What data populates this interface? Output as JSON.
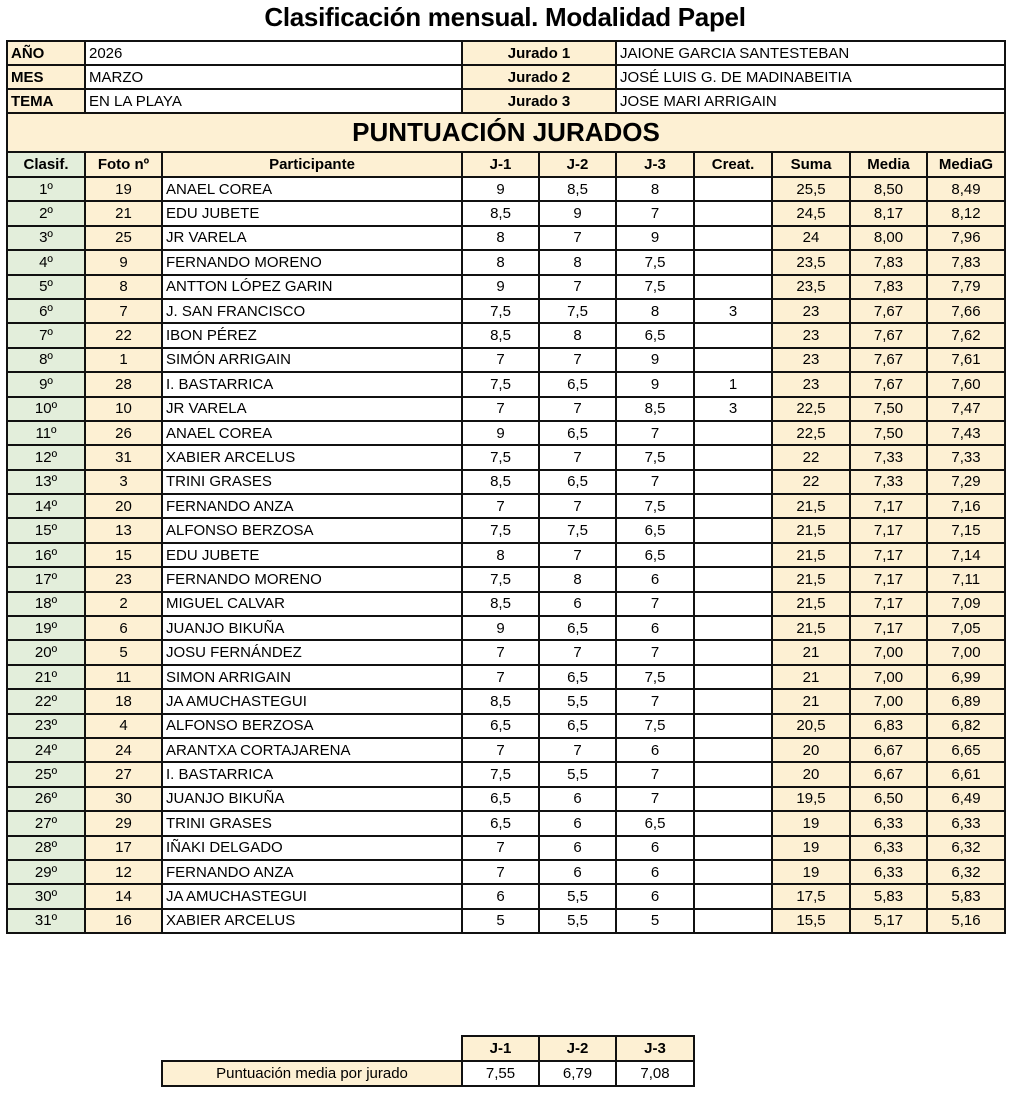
{
  "title": "Clasificación mensual. Modalidad Papel",
  "info": {
    "year_label": "AÑO",
    "year": "2026",
    "month_label": "MES",
    "month": "MARZO",
    "theme_label": "TEMA",
    "theme": "EN LA PLAYA",
    "jurado1_label": "Jurado 1",
    "jurado1": "JAIONE GARCIA SANTESTEBAN",
    "jurado2_label": "Jurado 2",
    "jurado2": "JOSÉ LUIS G. DE MADINABEITIA",
    "jurado3_label": "Jurado 3",
    "jurado3": "JOSE MARI ARRIGAIN"
  },
  "banner": "PUNTUACIÓN JURADOS",
  "columns": [
    "Clasif.",
    "Foto nº",
    "Participante",
    "J-1",
    "J-2",
    "J-3",
    "Creat.",
    "Suma",
    "Media",
    "MediaG"
  ],
  "rows": [
    [
      "1º",
      "19",
      "ANAEL COREA",
      "9",
      "8,5",
      "8",
      "",
      "25,5",
      "8,50",
      "8,49"
    ],
    [
      "2º",
      "21",
      "EDU JUBETE",
      "8,5",
      "9",
      "7",
      "",
      "24,5",
      "8,17",
      "8,12"
    ],
    [
      "3º",
      "25",
      "JR VARELA",
      "8",
      "7",
      "9",
      "",
      "24",
      "8,00",
      "7,96"
    ],
    [
      "4º",
      "9",
      "FERNANDO MORENO",
      "8",
      "8",
      "7,5",
      "",
      "23,5",
      "7,83",
      "7,83"
    ],
    [
      "5º",
      "8",
      "ANTTON LÓPEZ GARIN",
      "9",
      "7",
      "7,5",
      "",
      "23,5",
      "7,83",
      "7,79"
    ],
    [
      "6º",
      "7",
      "J. SAN FRANCISCO",
      "7,5",
      "7,5",
      "8",
      "3",
      "23",
      "7,67",
      "7,66"
    ],
    [
      "7º",
      "22",
      "IBON PÉREZ",
      "8,5",
      "8",
      "6,5",
      "",
      "23",
      "7,67",
      "7,62"
    ],
    [
      "8º",
      "1",
      "SIMÓN ARRIGAIN",
      "7",
      "7",
      "9",
      "",
      "23",
      "7,67",
      "7,61"
    ],
    [
      "9º",
      "28",
      "I. BASTARRICA",
      "7,5",
      "6,5",
      "9",
      "1",
      "23",
      "7,67",
      "7,60"
    ],
    [
      "10º",
      "10",
      "JR VARELA",
      "7",
      "7",
      "8,5",
      "3",
      "22,5",
      "7,50",
      "7,47"
    ],
    [
      "11º",
      "26",
      "ANAEL COREA",
      "9",
      "6,5",
      "7",
      "",
      "22,5",
      "7,50",
      "7,43"
    ],
    [
      "12º",
      "31",
      "XABIER ARCELUS",
      "7,5",
      "7",
      "7,5",
      "",
      "22",
      "7,33",
      "7,33"
    ],
    [
      "13º",
      "3",
      "TRINI GRASES",
      "8,5",
      "6,5",
      "7",
      "",
      "22",
      "7,33",
      "7,29"
    ],
    [
      "14º",
      "20",
      "FERNANDO ANZA",
      "7",
      "7",
      "7,5",
      "",
      "21,5",
      "7,17",
      "7,16"
    ],
    [
      "15º",
      "13",
      "ALFONSO BERZOSA",
      "7,5",
      "7,5",
      "6,5",
      "",
      "21,5",
      "7,17",
      "7,15"
    ],
    [
      "16º",
      "15",
      "EDU JUBETE",
      "8",
      "7",
      "6,5",
      "",
      "21,5",
      "7,17",
      "7,14"
    ],
    [
      "17º",
      "23",
      "FERNANDO MORENO",
      "7,5",
      "8",
      "6",
      "",
      "21,5",
      "7,17",
      "7,11"
    ],
    [
      "18º",
      "2",
      "MIGUEL CALVAR",
      "8,5",
      "6",
      "7",
      "",
      "21,5",
      "7,17",
      "7,09"
    ],
    [
      "19º",
      "6",
      "JUANJO BIKUÑA",
      "9",
      "6,5",
      "6",
      "",
      "21,5",
      "7,17",
      "7,05"
    ],
    [
      "20º",
      "5",
      "JOSU FERNÁNDEZ",
      "7",
      "7",
      "7",
      "",
      "21",
      "7,00",
      "7,00"
    ],
    [
      "21º",
      "11",
      "SIMON ARRIGAIN",
      "7",
      "6,5",
      "7,5",
      "",
      "21",
      "7,00",
      "6,99"
    ],
    [
      "22º",
      "18",
      "JA AMUCHASTEGUI",
      "8,5",
      "5,5",
      "7",
      "",
      "21",
      "7,00",
      "6,89"
    ],
    [
      "23º",
      "4",
      "ALFONSO BERZOSA",
      "6,5",
      "6,5",
      "7,5",
      "",
      "20,5",
      "6,83",
      "6,82"
    ],
    [
      "24º",
      "24",
      "ARANTXA CORTAJARENA",
      "7",
      "7",
      "6",
      "",
      "20",
      "6,67",
      "6,65"
    ],
    [
      "25º",
      "27",
      "I. BASTARRICA",
      "7,5",
      "5,5",
      "7",
      "",
      "20",
      "6,67",
      "6,61"
    ],
    [
      "26º",
      "30",
      "JUANJO BIKUÑA",
      "6,5",
      "6",
      "7",
      "",
      "19,5",
      "6,50",
      "6,49"
    ],
    [
      "27º",
      "29",
      "TRINI GRASES",
      "6,5",
      "6",
      "6,5",
      "",
      "19",
      "6,33",
      "6,33"
    ],
    [
      "28º",
      "17",
      "IÑAKI DELGADO",
      "7",
      "6",
      "6",
      "",
      "19",
      "6,33",
      "6,32"
    ],
    [
      "29º",
      "12",
      "FERNANDO ANZA",
      "7",
      "6",
      "6",
      "",
      "19",
      "6,33",
      "6,32"
    ],
    [
      "30º",
      "14",
      "JA AMUCHASTEGUI",
      "6",
      "5,5",
      "6",
      "",
      "17,5",
      "5,83",
      "5,83"
    ],
    [
      "31º",
      "16",
      "XABIER ARCELUS",
      "5",
      "5,5",
      "5",
      "",
      "15,5",
      "5,17",
      "5,16"
    ]
  ],
  "summary": {
    "headers": [
      "J-1",
      "J-2",
      "J-3"
    ],
    "label": "Puntuación media por jurado",
    "values": [
      "7,55",
      "6,79",
      "7,08"
    ]
  },
  "colors": {
    "header_fill": "#fdf0d3",
    "rank_fill": "#e3eedb",
    "border": "#111111"
  }
}
